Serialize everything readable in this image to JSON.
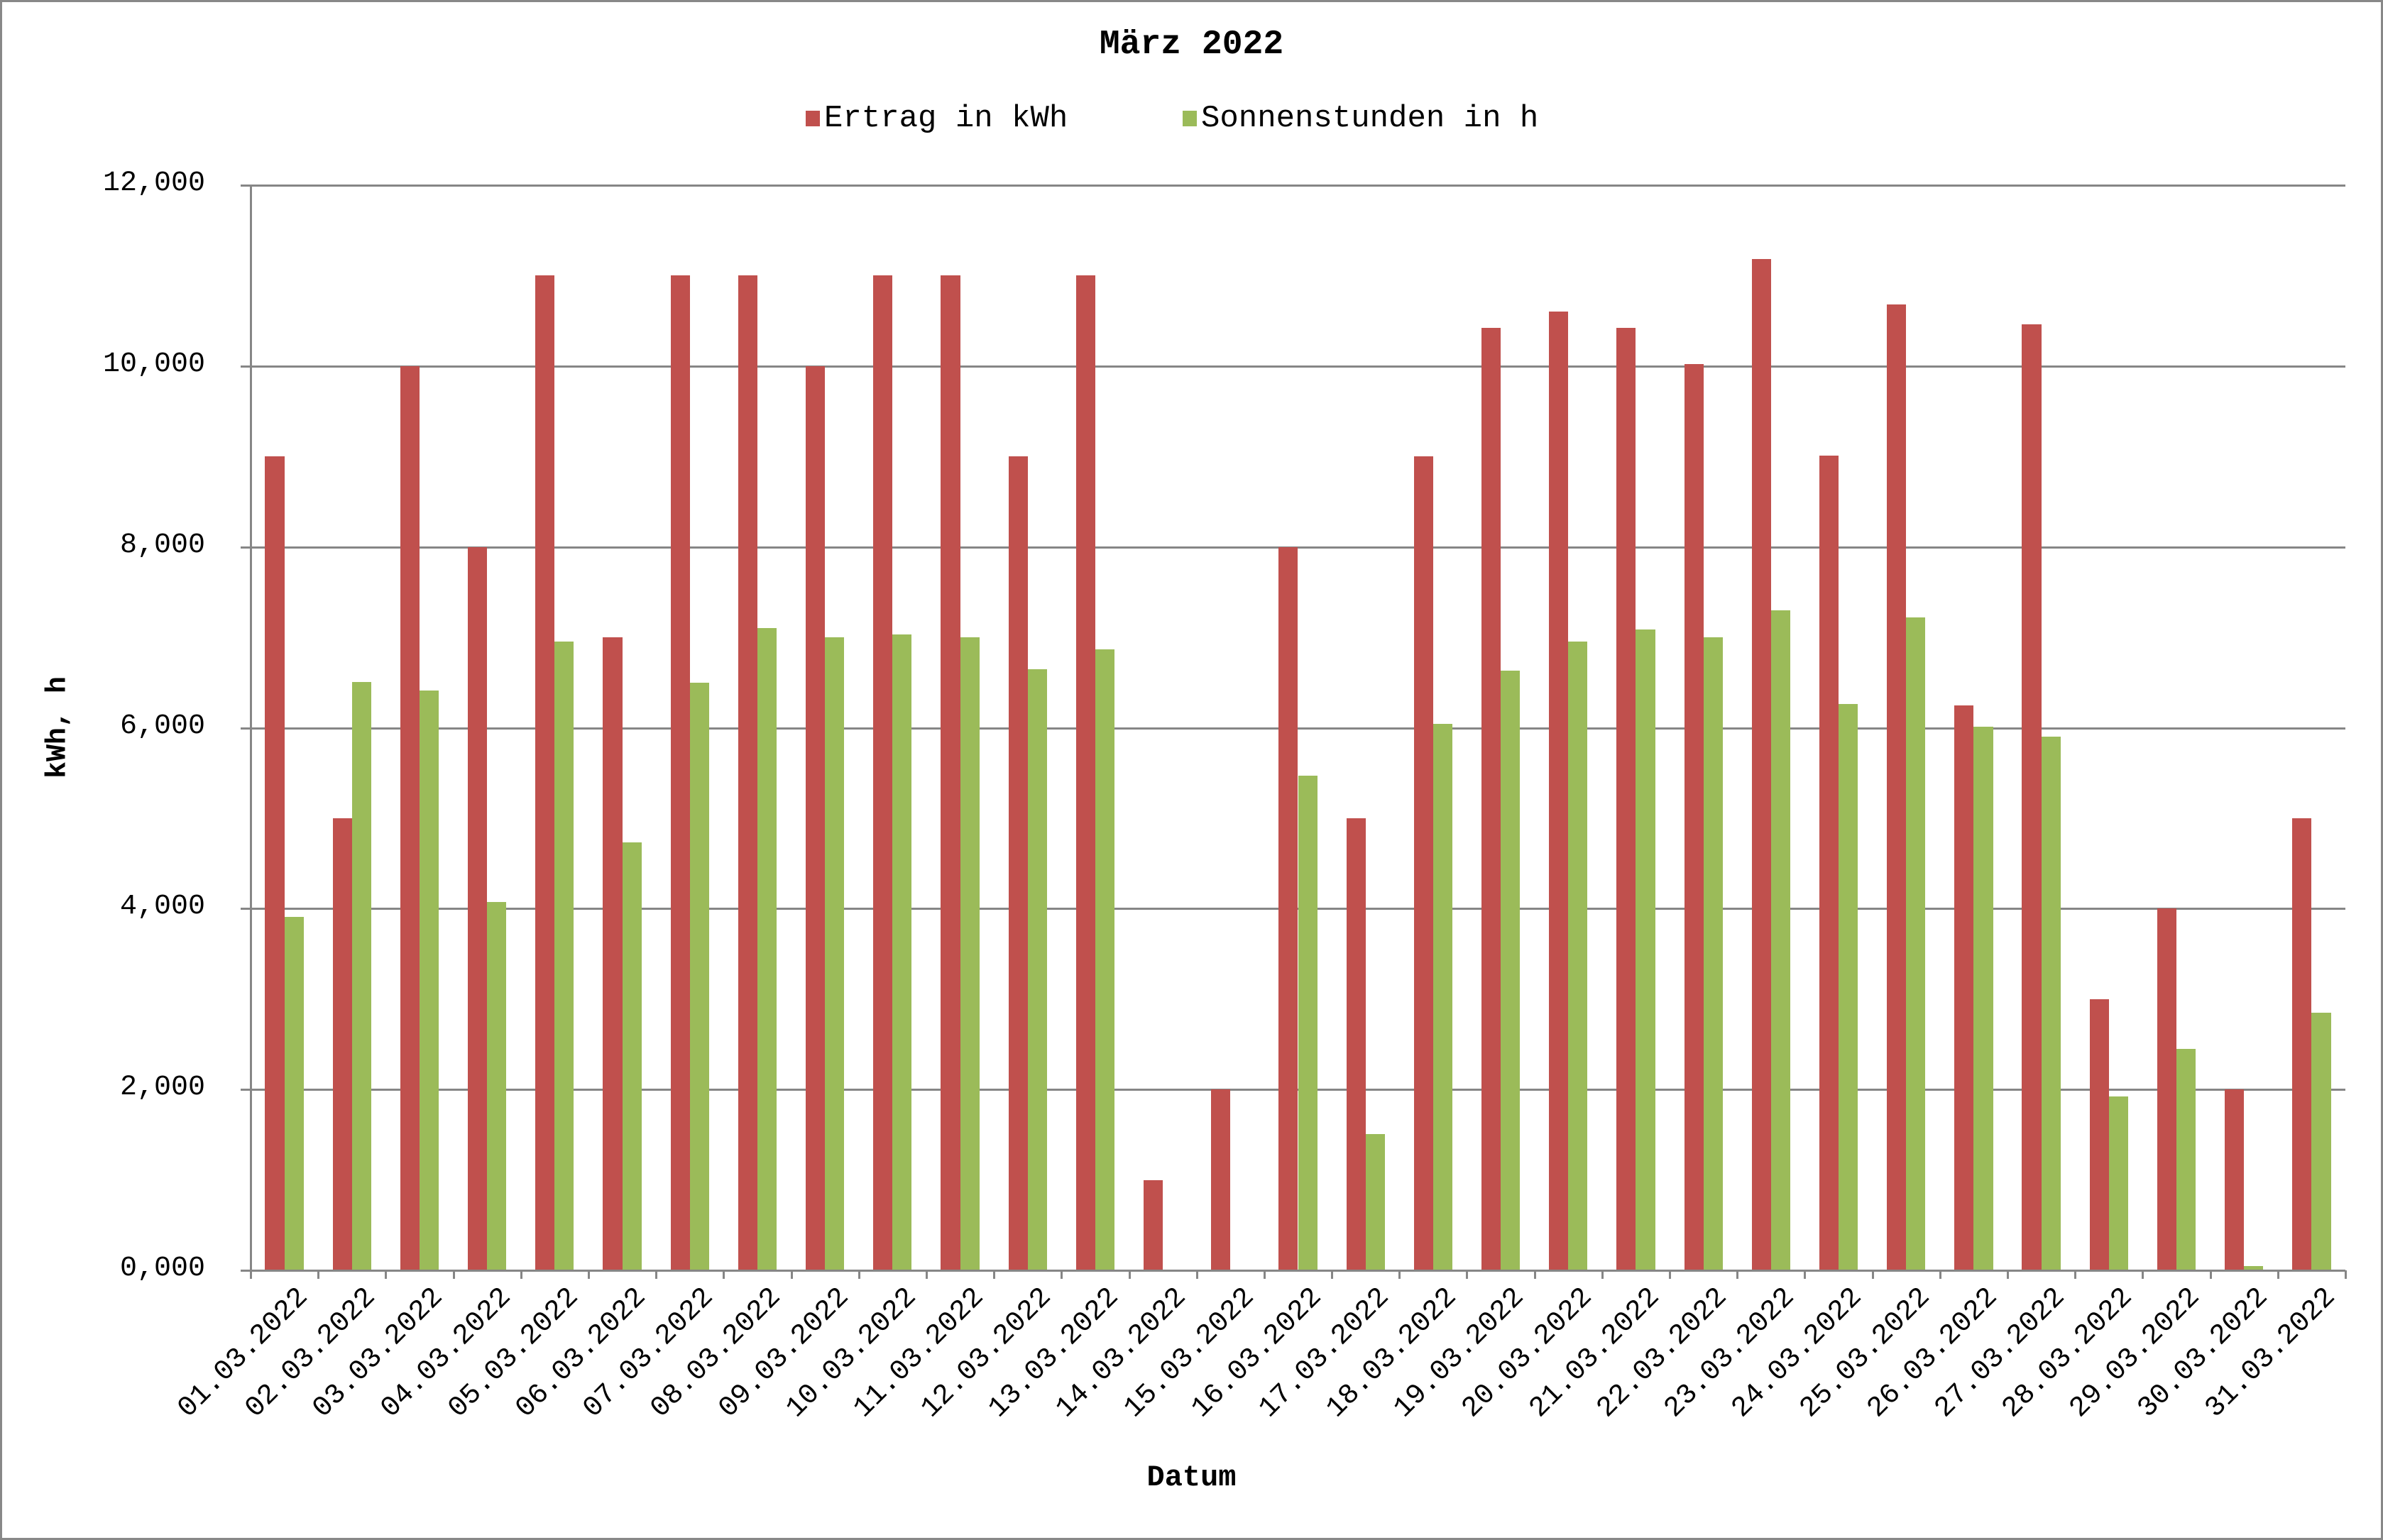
{
  "chart_data": {
    "type": "bar",
    "title": "März 2022",
    "xlabel": "Datum",
    "ylabel": "kWh, h",
    "ylim": [
      0,
      12
    ],
    "yticks": [
      "0,000",
      "2,000",
      "4,000",
      "6,000",
      "8,000",
      "10,000",
      "12,000"
    ],
    "ytick_values": [
      0,
      2,
      4,
      6,
      8,
      10,
      12
    ],
    "grid": true,
    "legend_position": "top",
    "categories": [
      "01.03.2022",
      "02.03.2022",
      "03.03.2022",
      "04.03.2022",
      "05.03.2022",
      "06.03.2022",
      "07.03.2022",
      "08.03.2022",
      "09.03.2022",
      "10.03.2022",
      "11.03.2022",
      "12.03.2022",
      "13.03.2022",
      "14.03.2022",
      "15.03.2022",
      "16.03.2022",
      "17.03.2022",
      "18.03.2022",
      "19.03.2022",
      "20.03.2022",
      "21.03.2022",
      "22.03.2022",
      "23.03.2022",
      "24.03.2022",
      "25.03.2022",
      "26.03.2022",
      "27.03.2022",
      "28.03.2022",
      "29.03.2022",
      "30.03.2022",
      "31.03.2022"
    ],
    "series": [
      {
        "name": "Ertrag in kWh",
        "color": "#c0504d",
        "values": [
          9,
          5,
          10,
          8,
          11,
          7,
          11,
          11,
          10,
          11,
          11,
          9,
          11,
          1,
          2,
          8,
          5,
          9,
          10.42,
          10.6,
          10.42,
          10.02,
          11.18,
          9.01,
          10.68,
          6.25,
          10.46,
          3,
          4,
          2,
          5
        ]
      },
      {
        "name": "Sonnenstunden in h",
        "color": "#9bbb59",
        "values": [
          3.91,
          6.51,
          6.41,
          4.07,
          6.95,
          4.73,
          6.5,
          7.1,
          7.0,
          7.03,
          7.0,
          6.65,
          6.87,
          0,
          0,
          5.47,
          1.51,
          6.04,
          6.63,
          6.95,
          7.09,
          7.0,
          7.3,
          6.26,
          7.22,
          6.01,
          5.9,
          1.92,
          2.45,
          0.05,
          2.85
        ]
      }
    ]
  },
  "legend": {
    "items": [
      {
        "label": "Ertrag in kWh",
        "color": "#c0504d"
      },
      {
        "label": "Sonnenstunden in h",
        "color": "#9bbb59"
      }
    ]
  },
  "colors": {
    "grid": "#868686",
    "border": "#888888"
  }
}
